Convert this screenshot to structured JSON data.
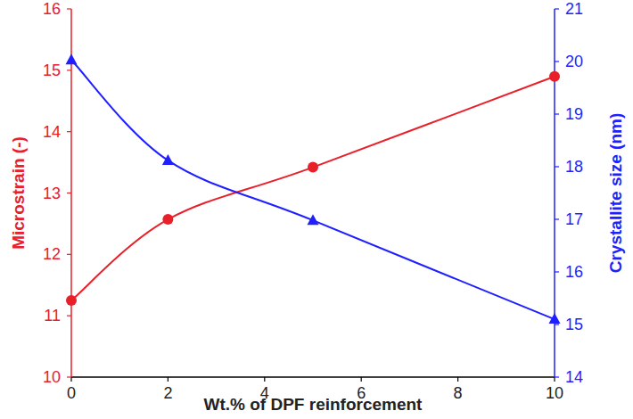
{
  "chart_data": {
    "type": "line",
    "x": [
      0,
      2,
      5,
      10
    ],
    "xlabel": "Wt.% of DPF reinforcement",
    "ylabel": "Microstrain (-)",
    "y2label": "Crystallite size (nm)",
    "xlim": [
      0,
      10
    ],
    "xticks": [
      0,
      2,
      4,
      6,
      8,
      10
    ],
    "ylim": [
      10,
      16
    ],
    "yticks": [
      10,
      11,
      12,
      13,
      14,
      15,
      16
    ],
    "y2lim": [
      14,
      21
    ],
    "y2ticks": [
      14,
      15,
      16,
      17,
      18,
      19,
      20,
      21
    ],
    "grid": false,
    "series": [
      {
        "color": "#e8202a",
        "marker": "circle",
        "line_style": "smooth",
        "values": [
          11.25,
          12.57,
          13.42,
          14.9
        ]
      },
      {
        "color": "#1f1fff",
        "marker": "triangle",
        "line_style": "smooth",
        "axis": "y2",
        "values": [
          20.03,
          18.12,
          16.98,
          15.1
        ]
      }
    ]
  }
}
